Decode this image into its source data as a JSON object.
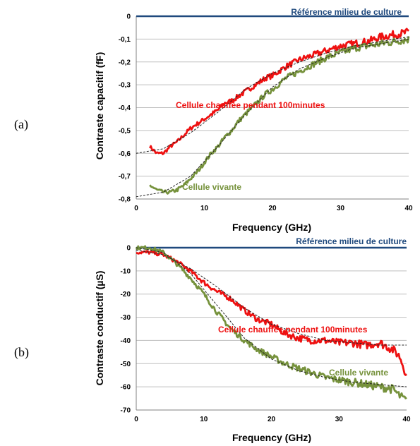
{
  "colors": {
    "heated": "#ee1111",
    "living": "#76923c",
    "reference": "#1f497d",
    "fit": "#222222",
    "grid": "#bfbfbf"
  },
  "chart_data": [
    {
      "panel": "(a)",
      "type": "line",
      "xlabel": "Frequency (GHz)",
      "ylabel": "Contraste capacitif (fF)",
      "xlim": [
        0,
        40
      ],
      "ylim": [
        -0.8,
        0
      ],
      "xticks": [
        "0",
        "10",
        "20",
        "30",
        "40"
      ],
      "yticks": [
        "0",
        "-0,1",
        "-0,2",
        "-0,3",
        "-0,4",
        "-0,5",
        "-0,6",
        "-0,7",
        "-0,8"
      ],
      "grid": true,
      "reference_label": "Référence milieu de culture",
      "series": [
        {
          "name": "Cellule chauffée pendant 100minutes",
          "color": "#ee1111",
          "x": [
            2,
            3,
            4,
            5,
            6,
            7,
            8,
            9,
            10,
            11,
            12,
            13,
            14,
            15,
            16,
            17,
            18,
            19,
            20,
            22,
            24,
            26,
            28,
            30,
            32,
            34,
            36,
            38,
            40
          ],
          "y": [
            -0.57,
            -0.6,
            -0.6,
            -0.57,
            -0.55,
            -0.52,
            -0.49,
            -0.47,
            -0.45,
            -0.43,
            -0.41,
            -0.38,
            -0.37,
            -0.35,
            -0.33,
            -0.31,
            -0.29,
            -0.27,
            -0.26,
            -0.22,
            -0.19,
            -0.17,
            -0.15,
            -0.13,
            -0.12,
            -0.11,
            -0.09,
            -0.08,
            -0.07
          ]
        },
        {
          "name": "Cellule vivante",
          "color": "#76923c",
          "x": [
            2,
            3,
            4,
            5,
            6,
            7,
            8,
            9,
            10,
            11,
            12,
            13,
            14,
            15,
            16,
            17,
            18,
            19,
            20,
            22,
            24,
            26,
            28,
            30,
            32,
            34,
            36,
            38,
            40
          ],
          "y": [
            -0.74,
            -0.76,
            -0.77,
            -0.77,
            -0.76,
            -0.74,
            -0.71,
            -0.68,
            -0.64,
            -0.6,
            -0.57,
            -0.53,
            -0.5,
            -0.46,
            -0.43,
            -0.4,
            -0.37,
            -0.34,
            -0.32,
            -0.27,
            -0.24,
            -0.21,
            -0.18,
            -0.16,
            -0.14,
            -0.13,
            -0.12,
            -0.11,
            -0.1
          ]
        }
      ],
      "fits": [
        {
          "x": [
            0,
            4,
            8,
            12,
            16,
            20,
            24,
            28,
            32,
            36,
            40
          ],
          "y": [
            -0.6,
            -0.58,
            -0.51,
            -0.42,
            -0.32,
            -0.25,
            -0.2,
            -0.16,
            -0.13,
            -0.11,
            -0.09
          ]
        },
        {
          "x": [
            0,
            4,
            8,
            12,
            16,
            20,
            24,
            28,
            32,
            36,
            40
          ],
          "y": [
            -0.79,
            -0.77,
            -0.7,
            -0.57,
            -0.43,
            -0.31,
            -0.23,
            -0.18,
            -0.14,
            -0.12,
            -0.1
          ]
        }
      ]
    },
    {
      "panel": "(b)",
      "type": "line",
      "xlabel": "Frequency (GHz)",
      "ylabel": "Contraste conductif (µS)",
      "xlim": [
        0,
        40
      ],
      "ylim": [
        -70,
        0
      ],
      "xticks": [
        "0",
        "10",
        "20",
        "30",
        "40"
      ],
      "yticks": [
        "0",
        "-10",
        "-20",
        "-30",
        "-40",
        "-50",
        "-60",
        "-70"
      ],
      "grid": true,
      "reference_label": "Référence milieu de culture",
      "series": [
        {
          "name": "Cellule chauffée pendant 100minutes",
          "color": "#ee1111",
          "x": [
            0,
            2,
            4,
            6,
            8,
            10,
            12,
            14,
            16,
            18,
            20,
            22,
            24,
            26,
            28,
            30,
            32,
            34,
            36,
            38,
            39,
            40
          ],
          "y": [
            -2,
            -2,
            -3,
            -6,
            -10,
            -15,
            -19,
            -22,
            -27,
            -31,
            -33,
            -37,
            -39,
            -40,
            -40,
            -41,
            -41,
            -42,
            -41,
            -44,
            -47,
            -55
          ]
        },
        {
          "name": "Cellule vivante",
          "color": "#76923c",
          "x": [
            0,
            2,
            4,
            6,
            8,
            10,
            12,
            14,
            16,
            18,
            20,
            22,
            24,
            26,
            28,
            30,
            32,
            34,
            36,
            38,
            39,
            40
          ],
          "y": [
            0,
            0,
            -2,
            -7,
            -13,
            -20,
            -28,
            -35,
            -40,
            -44,
            -47,
            -50,
            -52,
            -54,
            -56,
            -57,
            -58,
            -59,
            -60,
            -61,
            -64,
            -66
          ]
        }
      ],
      "fits": [
        {
          "x": [
            0,
            4,
            8,
            12,
            16,
            20,
            24,
            28,
            32,
            36,
            40
          ],
          "y": [
            -1,
            -3,
            -9,
            -17,
            -26,
            -33,
            -37,
            -40,
            -41,
            -42,
            -42
          ]
        },
        {
          "x": [
            0,
            4,
            8,
            12,
            16,
            20,
            24,
            28,
            32,
            36,
            40
          ],
          "y": [
            0,
            -2,
            -11,
            -25,
            -39,
            -48,
            -53,
            -56,
            -58,
            -59,
            -60
          ]
        }
      ]
    }
  ]
}
